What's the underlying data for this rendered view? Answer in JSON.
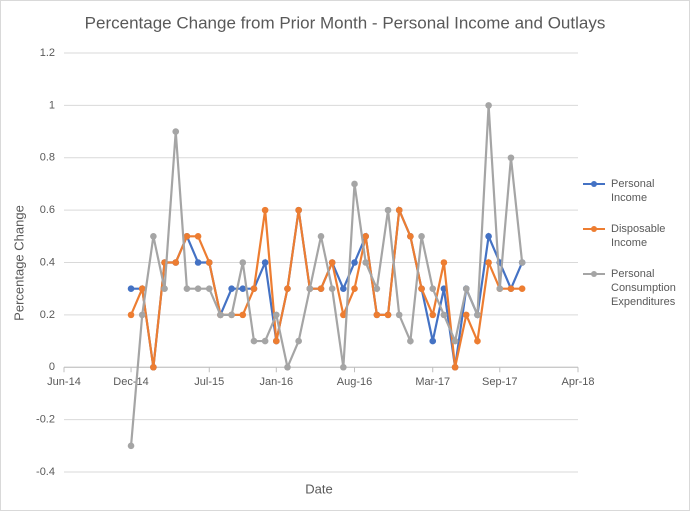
{
  "chart_data": {
    "type": "line",
    "title": "Percentage Change from Prior Month - Personal Income and Outlays",
    "xlabel": "Date",
    "ylabel": "Percentage Change",
    "x": [
      "2014-12",
      "2015-01",
      "2015-02",
      "2015-03",
      "2015-04",
      "2015-05",
      "2015-06",
      "2015-07",
      "2015-08",
      "2015-09",
      "2015-10",
      "2015-11",
      "2015-12",
      "2016-01",
      "2016-02",
      "2016-03",
      "2016-04",
      "2016-05",
      "2016-06",
      "2016-07",
      "2016-08",
      "2016-09",
      "2016-10",
      "2016-11",
      "2016-12",
      "2017-01",
      "2017-02",
      "2017-03",
      "2017-04",
      "2017-05",
      "2017-06",
      "2017-07",
      "2017-08",
      "2017-09",
      "2017-10",
      "2017-11"
    ],
    "series": [
      {
        "name": "Personal Income",
        "color": "#4472c4",
        "values": [
          0.3,
          0.3,
          0.0,
          0.4,
          0.4,
          0.5,
          0.4,
          0.4,
          0.2,
          0.3,
          0.3,
          0.3,
          0.4,
          0.1,
          0.3,
          0.6,
          0.3,
          0.3,
          0.4,
          0.3,
          0.4,
          0.5,
          0.2,
          0.2,
          0.6,
          0.5,
          0.3,
          0.1,
          0.3,
          0.0,
          0.3,
          0.2,
          0.5,
          0.4,
          0.3,
          0.4
        ]
      },
      {
        "name": "Disposable Income",
        "color": "#ed7d31",
        "values": [
          0.2,
          0.3,
          0.0,
          0.4,
          0.4,
          0.5,
          0.5,
          0.4,
          0.2,
          0.2,
          0.2,
          0.3,
          0.6,
          0.1,
          0.3,
          0.6,
          0.3,
          0.3,
          0.4,
          0.2,
          0.3,
          0.5,
          0.2,
          0.2,
          0.6,
          0.5,
          0.3,
          0.2,
          0.4,
          0.0,
          0.2,
          0.1,
          0.4,
          0.3,
          0.3,
          0.3
        ]
      },
      {
        "name": "Personal Consumption Expenditures",
        "color": "#a5a5a5",
        "values": [
          -0.3,
          0.2,
          0.5,
          0.3,
          0.9,
          0.3,
          0.3,
          0.3,
          0.2,
          0.2,
          0.4,
          0.1,
          0.1,
          0.2,
          0.0,
          0.1,
          0.3,
          0.5,
          0.3,
          0.0,
          0.7,
          0.4,
          0.3,
          0.6,
          0.2,
          0.1,
          0.5,
          0.3,
          0.2,
          0.1,
          0.3,
          0.2,
          1.0,
          0.3,
          0.8,
          0.4
        ]
      }
    ],
    "xlim": [
      "2014-06",
      "2018-04"
    ],
    "xticks": [
      {
        "value": "2014-06",
        "label": "Jun-14"
      },
      {
        "value": "2014-12",
        "label": "Dec-14"
      },
      {
        "value": "2015-07",
        "label": "Jul-15"
      },
      {
        "value": "2016-01",
        "label": "Jan-16"
      },
      {
        "value": "2016-08",
        "label": "Aug-16"
      },
      {
        "value": "2017-03",
        "label": "Mar-17"
      },
      {
        "value": "2017-09",
        "label": "Sep-17"
      },
      {
        "value": "2018-04",
        "label": "Apr-18"
      }
    ],
    "ylim": [
      -0.4,
      1.2
    ],
    "yticks": [
      -0.4,
      -0.2,
      0,
      0.2,
      0.4,
      0.6,
      0.8,
      1,
      1.2
    ],
    "grid": true,
    "legend": "right"
  }
}
